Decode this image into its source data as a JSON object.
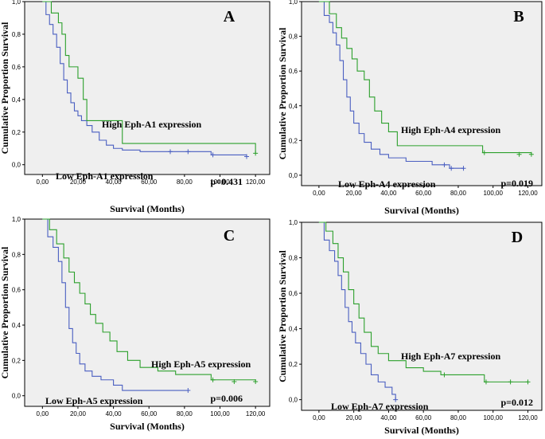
{
  "chart_data": [
    {
      "type": "line",
      "panel": "A",
      "xlabel": "Survival (Months)",
      "ylabel": "Cumulative Proportion Survival",
      "xlim": [
        -10,
        128
      ],
      "ylim": [
        -0.06,
        1.0
      ],
      "xticks": [
        "0,00",
        "20,00",
        "40,00",
        "60,00",
        "80,00",
        "100,00",
        "120,00"
      ],
      "yticks": [
        "0,0",
        "0,2",
        "0,4",
        "0,6",
        "0,8",
        "1,0"
      ],
      "pvalue": "p=0.431",
      "series": [
        {
          "name": "High Eph-A1 expression",
          "color": "#2ca02c",
          "x": [
            0,
            5,
            9,
            11,
            13,
            15,
            20,
            23,
            25,
            30,
            45,
            120
          ],
          "y": [
            1.0,
            0.93,
            0.87,
            0.8,
            0.67,
            0.6,
            0.53,
            0.4,
            0.27,
            0.27,
            0.13,
            0.07
          ],
          "censored": [
            {
              "x": 120,
              "y": 0.07
            }
          ]
        },
        {
          "name": "Low Eph-A1 expression",
          "color": "#4a5fc1",
          "x": [
            0,
            2,
            4,
            6,
            8,
            10,
            12,
            14,
            16,
            18,
            20,
            22,
            25,
            28,
            32,
            36,
            40,
            45,
            55,
            70,
            95,
            115
          ],
          "y": [
            1.0,
            0.92,
            0.86,
            0.8,
            0.72,
            0.62,
            0.52,
            0.44,
            0.38,
            0.33,
            0.3,
            0.27,
            0.24,
            0.2,
            0.15,
            0.12,
            0.1,
            0.09,
            0.08,
            0.08,
            0.06,
            0.05
          ],
          "censored": [
            {
              "x": 72,
              "y": 0.08
            },
            {
              "x": 82,
              "y": 0.08
            },
            {
              "x": 96,
              "y": 0.06
            },
            {
              "x": 115,
              "y": 0.05
            }
          ]
        }
      ],
      "labels": [
        {
          "text": "High Eph-A1 expression"
        },
        {
          "text": "Low Eph-A1 expression"
        }
      ]
    },
    {
      "type": "line",
      "panel": "B",
      "xlabel": "Survival (Months)",
      "ylabel": "Cumulative Proportion Survival",
      "xlim": [
        -10,
        128
      ],
      "ylim": [
        -0.06,
        1.0
      ],
      "xticks": [
        "0,00",
        "20,00",
        "40,00",
        "60,00",
        "80,00",
        "100,00",
        "120,00"
      ],
      "yticks": [
        "0,0",
        "0,2",
        "0,4",
        "0,6",
        "0,8",
        "1,0"
      ],
      "pvalue": "p=0.019",
      "series": [
        {
          "name": "High Eph-A4 expression",
          "color": "#2ca02c",
          "x": [
            0,
            6,
            10,
            13,
            16,
            19,
            22,
            26,
            29,
            32,
            36,
            40,
            45,
            94,
            122
          ],
          "y": [
            1.0,
            0.93,
            0.85,
            0.79,
            0.73,
            0.67,
            0.6,
            0.55,
            0.45,
            0.37,
            0.3,
            0.25,
            0.17,
            0.13,
            0.12
          ],
          "censored": [
            {
              "x": 95,
              "y": 0.13
            },
            {
              "x": 115,
              "y": 0.12
            },
            {
              "x": 122,
              "y": 0.12
            }
          ]
        },
        {
          "name": "Low Eph-A4 expression",
          "color": "#4a5fc1",
          "x": [
            0,
            3,
            6,
            8,
            10,
            12,
            14,
            16,
            18,
            20,
            23,
            26,
            30,
            35,
            40,
            50,
            65,
            75,
            83
          ],
          "y": [
            1.0,
            0.92,
            0.88,
            0.82,
            0.75,
            0.66,
            0.55,
            0.45,
            0.37,
            0.3,
            0.24,
            0.19,
            0.15,
            0.12,
            0.1,
            0.08,
            0.06,
            0.04,
            0.04
          ],
          "censored": [
            {
              "x": 72,
              "y": 0.06
            },
            {
              "x": 76,
              "y": 0.04
            },
            {
              "x": 83,
              "y": 0.04
            }
          ]
        }
      ],
      "labels": [
        {
          "text": "High Eph-A4 expression"
        },
        {
          "text": "Low Eph-A4 expression"
        }
      ]
    },
    {
      "type": "line",
      "panel": "C",
      "xlabel": "Survival (Months)",
      "ylabel": "Cumulative Proportion Survival",
      "xlim": [
        -10,
        128
      ],
      "ylim": [
        -0.06,
        1.0
      ],
      "xticks": [
        "0,00",
        "20,00",
        "40,00",
        "60,00",
        "80,00",
        "100,00",
        "120,00"
      ],
      "yticks": [
        "0,0",
        "0,2",
        "0,4",
        "0,6",
        "0,8",
        "1,0"
      ],
      "pvalue": "p=0.006",
      "series": [
        {
          "name": "High Eph-A5 expression",
          "color": "#2ca02c",
          "x": [
            0,
            4,
            8,
            12,
            15,
            18,
            21,
            24,
            27,
            30,
            34,
            38,
            42,
            48,
            55,
            65,
            75,
            95,
            120
          ],
          "y": [
            1.0,
            0.94,
            0.86,
            0.78,
            0.7,
            0.64,
            0.58,
            0.52,
            0.46,
            0.41,
            0.36,
            0.31,
            0.25,
            0.2,
            0.16,
            0.14,
            0.12,
            0.09,
            0.08
          ],
          "censored": [
            {
              "x": 96,
              "y": 0.09
            },
            {
              "x": 108,
              "y": 0.08
            },
            {
              "x": 120,
              "y": 0.08
            }
          ]
        },
        {
          "name": "Low Eph-A5 expression",
          "color": "#4a5fc1",
          "x": [
            0,
            3,
            6,
            9,
            11,
            13,
            15,
            17,
            19,
            21,
            24,
            28,
            33,
            40,
            45,
            82
          ],
          "y": [
            1.0,
            0.9,
            0.84,
            0.76,
            0.64,
            0.5,
            0.38,
            0.3,
            0.24,
            0.18,
            0.14,
            0.11,
            0.09,
            0.06,
            0.03,
            0.03
          ],
          "censored": [
            {
              "x": 82,
              "y": 0.03
            }
          ]
        }
      ],
      "labels": [
        {
          "text": "High Eph-A5 expression"
        },
        {
          "text": "Low Eph-A5 expression"
        }
      ]
    },
    {
      "type": "line",
      "panel": "D",
      "xlabel": "Survival (Months)",
      "ylabel": "Cumulative Proportion Survival",
      "xlim": [
        -10,
        128
      ],
      "ylim": [
        -0.06,
        1.0
      ],
      "xticks": [
        "0,00",
        "20,00",
        "40,00",
        "60,00",
        "80,00",
        "100,00",
        "120,00"
      ],
      "yticks": [
        "0,0",
        "0,2",
        "0,4",
        "0,6",
        "0,8",
        "1,0"
      ],
      "pvalue": "p=0.012",
      "series": [
        {
          "name": "High Eph-A7 expression",
          "color": "#2ca02c",
          "x": [
            0,
            4,
            8,
            11,
            14,
            17,
            20,
            23,
            26,
            30,
            34,
            40,
            50,
            60,
            70,
            95,
            120
          ],
          "y": [
            1.0,
            0.95,
            0.88,
            0.8,
            0.72,
            0.62,
            0.54,
            0.46,
            0.38,
            0.3,
            0.26,
            0.22,
            0.18,
            0.16,
            0.14,
            0.1,
            0.1
          ],
          "censored": [
            {
              "x": 72,
              "y": 0.14
            },
            {
              "x": 96,
              "y": 0.1
            },
            {
              "x": 110,
              "y": 0.1
            },
            {
              "x": 120,
              "y": 0.1
            }
          ]
        },
        {
          "name": "Low Eph-A7 expression",
          "color": "#4a5fc1",
          "x": [
            0,
            3,
            6,
            9,
            11,
            13,
            15,
            17,
            19,
            21,
            24,
            27,
            30,
            34,
            38,
            42,
            44
          ],
          "y": [
            1.0,
            0.9,
            0.84,
            0.78,
            0.7,
            0.62,
            0.52,
            0.44,
            0.38,
            0.32,
            0.26,
            0.2,
            0.14,
            0.1,
            0.07,
            0.03,
            0.0
          ],
          "censored": [
            {
              "x": 44,
              "y": 0.0
            }
          ]
        }
      ],
      "labels": [
        {
          "text": "High Eph-A7 expression"
        },
        {
          "text": "Low Eph-A7 expression"
        }
      ]
    }
  ]
}
